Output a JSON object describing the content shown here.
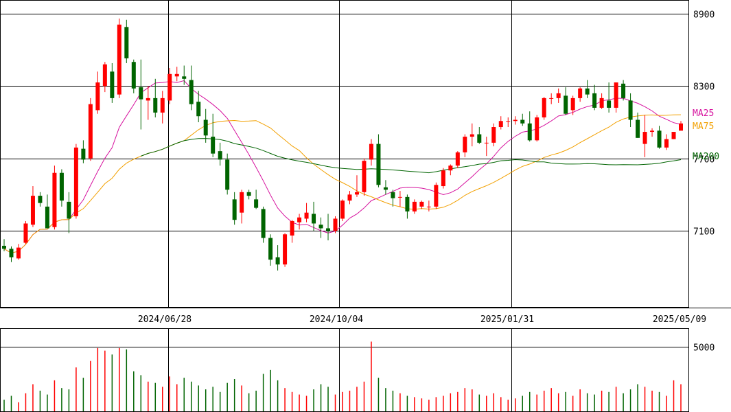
{
  "chart_data": {
    "type": "candlestick",
    "price_axis": {
      "ticks": [
        7100,
        7700,
        8300,
        8900
      ],
      "labels": [
        "7100",
        "7700",
        "8300",
        "8900"
      ]
    },
    "date_labels": [
      "2024/06/28",
      "2024/10/04",
      "2025/01/31",
      "2025/05/09"
    ],
    "legend": [
      {
        "name": "MA25",
        "color": "#d6119e"
      },
      {
        "name": "MA75",
        "color": "#f2a000"
      },
      {
        "name": "MA200",
        "color": "#006400"
      }
    ],
    "volume_axis": {
      "ticks": [
        5000
      ],
      "labels": [
        "5000"
      ]
    },
    "colors": {
      "up": "#ff0000",
      "down": "#006400",
      "grid": "#000000"
    },
    "ohlc_sampled": [
      [
        6975,
        7030,
        6930,
        6950
      ],
      [
        6950,
        6970,
        6840,
        6880
      ],
      [
        6870,
        6990,
        6860,
        6960
      ],
      [
        7000,
        7180,
        6990,
        7160
      ],
      [
        7150,
        7470,
        7130,
        7390
      ],
      [
        7390,
        7420,
        7300,
        7330
      ],
      [
        7300,
        7400,
        7120,
        7120
      ],
      [
        7130,
        7640,
        7110,
        7580
      ],
      [
        7580,
        7610,
        7300,
        7350
      ],
      [
        7340,
        7420,
        7080,
        7200
      ],
      [
        7220,
        7820,
        7200,
        7790
      ],
      [
        7780,
        7850,
        7660,
        7690
      ],
      [
        7700,
        8200,
        7680,
        8150
      ],
      [
        8100,
        8420,
        8070,
        8330
      ],
      [
        8300,
        8500,
        8250,
        8480
      ],
      [
        8420,
        8490,
        8160,
        8200
      ],
      [
        8230,
        8860,
        8200,
        8810
      ],
      [
        8790,
        8850,
        8490,
        8530
      ],
      [
        8500,
        8520,
        8240,
        8280
      ],
      [
        8290,
        8520,
        7940,
        8190
      ],
      [
        8180,
        8300,
        8020,
        8200
      ],
      [
        8200,
        8360,
        8040,
        8080
      ],
      [
        8080,
        8260,
        7990,
        8200
      ],
      [
        8180,
        8450,
        8150,
        8400
      ],
      [
        8380,
        8460,
        8340,
        8400
      ],
      [
        8380,
        8470,
        8310,
        8360
      ],
      [
        8350,
        8470,
        8100,
        8150
      ],
      [
        8170,
        8260,
        8000,
        8050
      ],
      [
        8020,
        8110,
        7830,
        7890
      ],
      [
        7880,
        8070,
        7710,
        7740
      ],
      [
        7760,
        7830,
        7640,
        7690
      ],
      [
        7690,
        7740,
        7400,
        7440
      ],
      [
        7360,
        7420,
        7150,
        7190
      ],
      [
        7250,
        7440,
        7160,
        7420
      ],
      [
        7420,
        7440,
        7360,
        7390
      ],
      [
        7360,
        7440,
        7280,
        7290
      ],
      [
        7280,
        7300,
        7000,
        7040
      ],
      [
        7040,
        7070,
        6810,
        6860
      ],
      [
        6880,
        6980,
        6770,
        6820
      ],
      [
        6820,
        7080,
        6800,
        7070
      ],
      [
        7060,
        7190,
        7000,
        7180
      ],
      [
        7170,
        7240,
        7110,
        7210
      ],
      [
        7200,
        7330,
        7170,
        7250
      ],
      [
        7240,
        7340,
        7100,
        7160
      ],
      [
        7150,
        7210,
        7040,
        7120
      ],
      [
        7120,
        7240,
        7020,
        7100
      ],
      [
        7100,
        7220,
        7080,
        7200
      ],
      [
        7200,
        7360,
        7180,
        7350
      ],
      [
        7350,
        7430,
        7320,
        7400
      ],
      [
        7400,
        7560,
        7380,
        7420
      ],
      [
        7420,
        7700,
        7390,
        7680
      ],
      [
        7690,
        7860,
        7640,
        7820
      ],
      [
        7820,
        7900,
        7460,
        7480
      ],
      [
        7460,
        7520,
        7400,
        7440
      ],
      [
        7420,
        7440,
        7300,
        7370
      ],
      [
        7380,
        7430,
        7300,
        7380
      ],
      [
        7380,
        7400,
        7200,
        7260
      ],
      [
        7260,
        7360,
        7240,
        7340
      ],
      [
        7300,
        7350,
        7280,
        7340
      ],
      [
        7300,
        7350,
        7260,
        7300
      ],
      [
        7300,
        7500,
        7280,
        7480
      ],
      [
        7470,
        7620,
        7450,
        7600
      ],
      [
        7600,
        7650,
        7560,
        7640
      ],
      [
        7640,
        7760,
        7620,
        7750
      ],
      [
        7750,
        7900,
        7710,
        7880
      ],
      [
        7880,
        7990,
        7800,
        7900
      ],
      [
        7900,
        7960,
        7820,
        7830
      ],
      [
        7830,
        7880,
        7720,
        7830
      ],
      [
        7830,
        7990,
        7800,
        7960
      ],
      [
        7960,
        8050,
        7940,
        8010
      ],
      [
        8010,
        8040,
        7960,
        8010
      ],
      [
        8010,
        8050,
        7980,
        8020
      ],
      [
        8020,
        8070,
        7970,
        7990
      ],
      [
        7990,
        8090,
        7840,
        7850
      ],
      [
        7850,
        8060,
        7840,
        8040
      ],
      [
        8040,
        8210,
        8020,
        8200
      ],
      [
        8200,
        8240,
        8150,
        8200
      ],
      [
        8200,
        8280,
        8160,
        8240
      ],
      [
        8220,
        8290,
        8060,
        8070
      ],
      [
        8100,
        8220,
        8060,
        8200
      ],
      [
        8200,
        8290,
        8170,
        8280
      ],
      [
        8280,
        8350,
        8200,
        8230
      ],
      [
        8240,
        8310,
        8100,
        8120
      ],
      [
        8120,
        8240,
        8110,
        8200
      ],
      [
        8180,
        8330,
        8080,
        8120
      ],
      [
        8120,
        8330,
        8080,
        8330
      ],
      [
        8320,
        8350,
        8180,
        8200
      ],
      [
        8180,
        8240,
        7960,
        8020
      ],
      [
        8020,
        8080,
        7870,
        7870
      ],
      [
        7820,
        8060,
        7710,
        7920
      ],
      [
        7920,
        7950,
        7880,
        7930
      ],
      [
        7930,
        7970,
        7780,
        7790
      ],
      [
        7790,
        7900,
        7770,
        7860
      ],
      [
        7860,
        7920,
        7860,
        7920
      ],
      [
        7930,
        8010,
        7930,
        7990
      ]
    ],
    "volume_sampled": [
      900,
      1200,
      700,
      1400,
      2100,
      1600,
      1300,
      2400,
      1800,
      1700,
      3400,
      2600,
      3900,
      4900,
      4700,
      4400,
      4900,
      4800,
      3100,
      2800,
      2300,
      2200,
      1900,
      2700,
      2100,
      2600,
      2300,
      2000,
      1700,
      1900,
      1500,
      2200,
      2500,
      2000,
      1400,
      1600,
      2900,
      3200,
      2400,
      1800,
      1500,
      1300,
      1200,
      1700,
      2100,
      1900,
      1300,
      1500,
      1600,
      1900,
      2300,
      5400,
      2600,
      1800,
      1600,
      1400,
      1200,
      1100,
      1000,
      900,
      1100,
      1200,
      1400,
      1500,
      1800,
      1700,
      1300,
      1200,
      1400,
      1100,
      900,
      1000,
      1200,
      1500,
      1300,
      1600,
      1800,
      1400,
      1500,
      1200,
      1700,
      1400,
      1300,
      1600,
      1500,
      1900,
      1400,
      1700,
      2100,
      1900,
      1600,
      1500,
      1200,
      2400,
      2100
    ]
  }
}
